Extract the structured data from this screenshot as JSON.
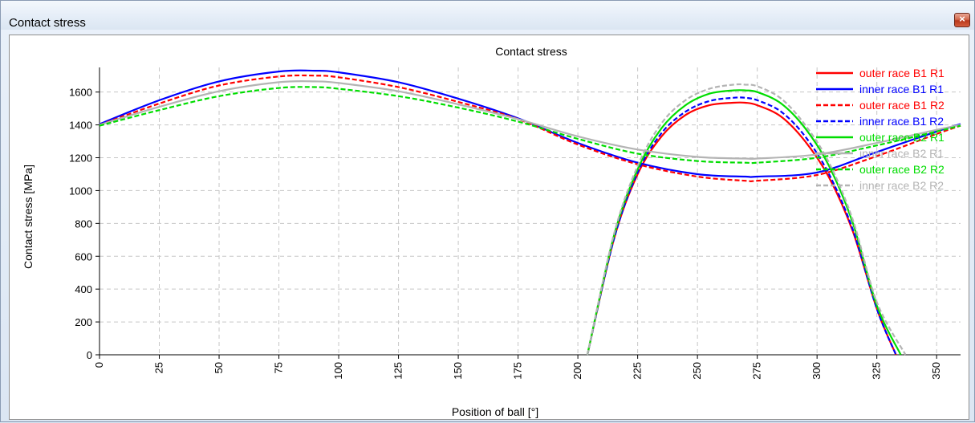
{
  "window": {
    "title": "Contact stress",
    "close_icon": "close-icon",
    "close_glyph": "×",
    "accent": "#c8462a"
  },
  "chart_data": {
    "type": "line",
    "title": "Contact stress",
    "xlabel": "Position of ball [°]",
    "ylabel": "Contact stress [MPa]",
    "xlim": [
      0,
      360
    ],
    "ylim": [
      0,
      1750
    ],
    "x_ticks": [
      0,
      25,
      50,
      75,
      100,
      125,
      150,
      175,
      200,
      225,
      250,
      275,
      300,
      325,
      350
    ],
    "y_ticks": [
      0,
      200,
      400,
      600,
      800,
      1000,
      1200,
      1400,
      1600
    ],
    "grid": true,
    "legend_position": "top-right",
    "series": [
      {
        "name": "outer race B1 R1",
        "color": "#ff0000",
        "dash": "solid",
        "x": [
          204,
          215,
          225,
          235,
          245,
          255,
          265,
          270,
          275,
          285,
          295,
          305,
          315,
          325,
          333
        ],
        "y": [
          0,
          700,
          1100,
          1330,
          1460,
          1520,
          1535,
          1535,
          1520,
          1450,
          1300,
          1080,
          750,
          280,
          0
        ]
      },
      {
        "name": "inner race B1 R1",
        "color": "#0000ff",
        "dash": "solid",
        "x": [
          0,
          25,
          50,
          75,
          90,
          100,
          125,
          150,
          175,
          200,
          225,
          250,
          270,
          275,
          300,
          325,
          350,
          360
        ],
        "y": [
          1405,
          1550,
          1665,
          1725,
          1730,
          1720,
          1660,
          1560,
          1440,
          1290,
          1170,
          1100,
          1085,
          1085,
          1110,
          1235,
          1360,
          1405
        ]
      },
      {
        "name": "outer race B1 R2",
        "color": "#ff0000",
        "dash": "dashed",
        "x": [
          0,
          25,
          50,
          75,
          90,
          100,
          125,
          150,
          175,
          200,
          225,
          250,
          270,
          275,
          300,
          325,
          350,
          360
        ],
        "y": [
          1400,
          1530,
          1640,
          1695,
          1700,
          1690,
          1630,
          1540,
          1435,
          1280,
          1160,
          1085,
          1060,
          1060,
          1095,
          1210,
          1345,
          1395
        ]
      },
      {
        "name": "inner race B1 R2",
        "color": "#0000ff",
        "dash": "dashed",
        "x": [
          204,
          215,
          225,
          235,
          245,
          255,
          265,
          270,
          275,
          285,
          295,
          305,
          315,
          325,
          333
        ],
        "y": [
          0,
          700,
          1110,
          1350,
          1480,
          1545,
          1565,
          1565,
          1550,
          1480,
          1330,
          1100,
          760,
          280,
          0
        ]
      },
      {
        "name": "outer race B2 R1",
        "color": "#00dd00",
        "dash": "solid",
        "x": [
          204,
          215,
          225,
          235,
          245,
          255,
          265,
          270,
          275,
          285,
          295,
          305,
          315,
          325,
          335
        ],
        "y": [
          0,
          720,
          1130,
          1380,
          1520,
          1590,
          1610,
          1610,
          1600,
          1530,
          1380,
          1150,
          800,
          300,
          0
        ]
      },
      {
        "name": "inner race B2 R1",
        "color": "#b4b4b4",
        "dash": "solid",
        "x": [
          0,
          25,
          50,
          75,
          90,
          100,
          125,
          150,
          175,
          200,
          225,
          250,
          270,
          275,
          300,
          325,
          350,
          360
        ],
        "y": [
          1400,
          1510,
          1605,
          1660,
          1665,
          1655,
          1605,
          1525,
          1435,
          1330,
          1250,
          1205,
          1195,
          1195,
          1220,
          1290,
          1370,
          1400
        ]
      },
      {
        "name": "outer race B2 R2",
        "color": "#00dd00",
        "dash": "dashed",
        "x": [
          0,
          25,
          50,
          75,
          90,
          100,
          125,
          150,
          175,
          200,
          225,
          250,
          270,
          275,
          300,
          325,
          350,
          360
        ],
        "y": [
          1395,
          1490,
          1575,
          1625,
          1630,
          1620,
          1575,
          1505,
          1420,
          1315,
          1225,
          1180,
          1170,
          1170,
          1200,
          1275,
          1360,
          1395
        ]
      },
      {
        "name": "inner race B2 R2",
        "color": "#b4b4b4",
        "dash": "dashed",
        "x": [
          204,
          215,
          225,
          235,
          245,
          255,
          265,
          270,
          275,
          285,
          295,
          305,
          315,
          325,
          337
        ],
        "y": [
          0,
          730,
          1150,
          1410,
          1550,
          1620,
          1645,
          1645,
          1635,
          1560,
          1400,
          1170,
          820,
          320,
          0
        ]
      }
    ]
  }
}
